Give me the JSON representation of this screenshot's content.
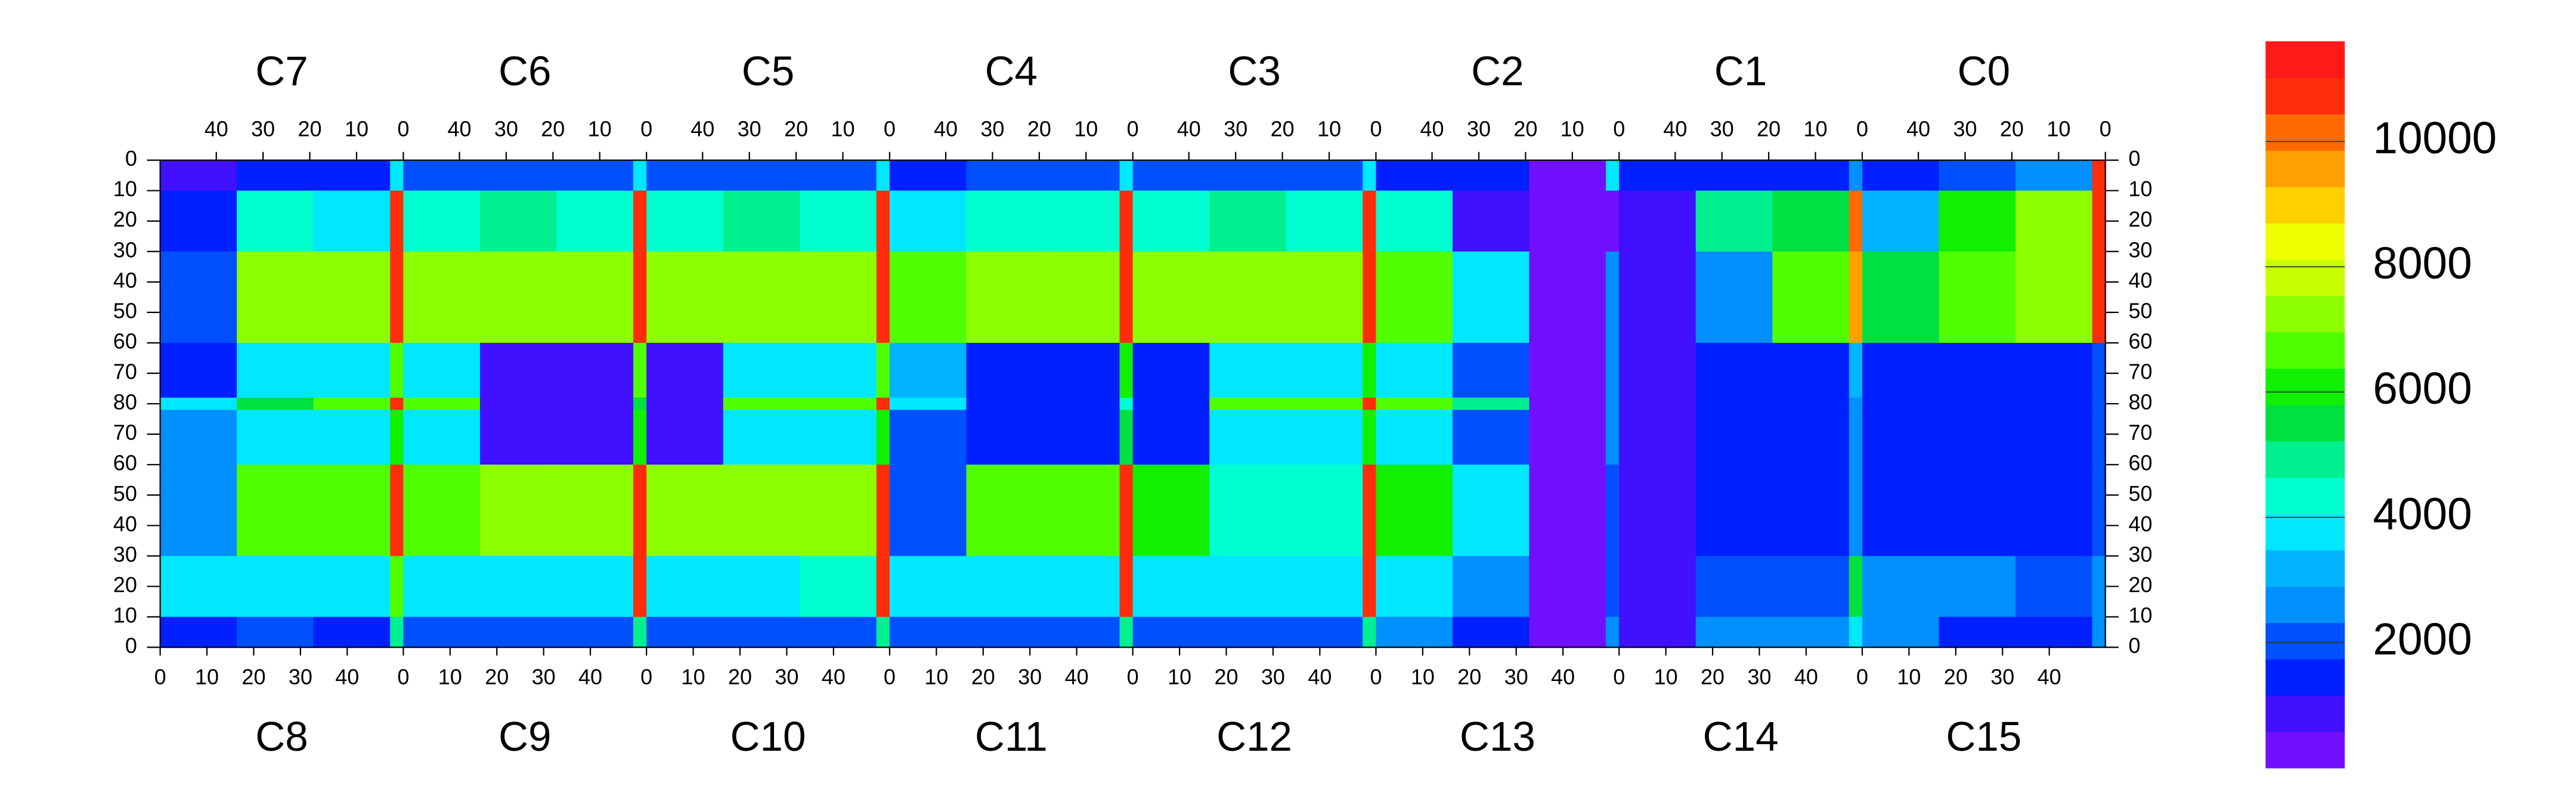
{
  "chart_data": {
    "type": "heatmap",
    "chips_top": [
      "C7",
      "C6",
      "C5",
      "C4",
      "C3",
      "C2",
      "C1",
      "C0"
    ],
    "chips_bottom": [
      "C8",
      "C9",
      "C10",
      "C11",
      "C12",
      "C13",
      "C14",
      "C15"
    ],
    "top_xticks": [
      40,
      30,
      20,
      10,
      0
    ],
    "bottom_xticks": [
      0,
      10,
      20,
      30,
      40
    ],
    "xlim": [
      0,
      52
    ],
    "yticks": [
      0,
      10,
      20,
      30,
      40,
      50,
      60,
      70,
      80,
      70,
      60,
      50,
      40,
      30,
      20,
      10,
      0
    ],
    "ylim": [
      0,
      80
    ],
    "z": [
      [
        800,
        1200,
        1500,
        3500,
        1800,
        2200,
        2000,
        4000,
        1800,
        2000,
        2200,
        4000,
        1500,
        2000,
        2000,
        4000,
        1800,
        2200,
        2000,
        4000,
        1500,
        1200,
        500,
        3500,
        1200,
        1500,
        1500,
        2500,
        1200,
        1800,
        2500,
        10500
      ],
      [
        1500,
        4500,
        4000,
        10500,
        4500,
        5000,
        4500,
        10500,
        4500,
        5000,
        4500,
        10500,
        4000,
        4500,
        4500,
        10500,
        4500,
        5000,
        4500,
        10500,
        4500,
        1000,
        500,
        500,
        1000,
        5000,
        5500,
        10000,
        3000,
        6000,
        7000,
        10500
      ],
      [
        2000,
        7000,
        7000,
        11000,
        7000,
        7500,
        7000,
        11000,
        7000,
        7500,
        7500,
        11000,
        6500,
        7000,
        7000,
        11000,
        7000,
        7000,
        7000,
        11000,
        6500,
        3500,
        500,
        2500,
        1000,
        2500,
        6500,
        9500,
        5500,
        6500,
        7500,
        10500
      ],
      [
        1500,
        3500,
        3500,
        6500,
        3500,
        1000,
        1000,
        6500,
        800,
        3500,
        3500,
        6500,
        3000,
        1500,
        1500,
        6000,
        1500,
        3500,
        3500,
        6000,
        3500,
        2000,
        500,
        2500,
        800,
        1500,
        1500,
        3000,
        1500,
        1500,
        1500,
        2000
      ],
      [
        3500,
        5500,
        6500,
        10500,
        6500,
        1000,
        1000,
        5500,
        900,
        6500,
        6500,
        10500,
        4000,
        1500,
        1500,
        4500,
        1500,
        6500,
        6500,
        10500,
        6500,
        5000,
        500,
        2500,
        800,
        1500,
        1500,
        2500,
        1500,
        1500,
        1500,
        2000
      ],
      [
        2500,
        3500,
        3500,
        6000,
        3500,
        1000,
        1000,
        6000,
        800,
        3500,
        3500,
        6000,
        1800,
        1500,
        1500,
        5500,
        1500,
        3500,
        3500,
        6000,
        3500,
        2000,
        500,
        2500,
        800,
        1500,
        1500,
        2500,
        1500,
        1500,
        1500,
        2000
      ],
      [
        2500,
        6500,
        6500,
        10500,
        6500,
        7000,
        7000,
        11000,
        7000,
        7000,
        7000,
        11000,
        2000,
        6500,
        6500,
        11000,
        6000,
        4500,
        4500,
        10500,
        6000,
        3500,
        500,
        2000,
        800,
        1500,
        1500,
        2500,
        1500,
        1500,
        1500,
        2000
      ],
      [
        3500,
        3500,
        4000,
        6500,
        3500,
        4000,
        4000,
        10500,
        4000,
        4000,
        4500,
        10500,
        3500,
        4000,
        4000,
        10500,
        3500,
        4000,
        4000,
        10500,
        4000,
        2500,
        500,
        2000,
        1000,
        2000,
        2000,
        5500,
        2500,
        2500,
        2000,
        2500
      ],
      [
        1500,
        2000,
        1500,
        5000,
        2000,
        2000,
        2000,
        5000,
        2000,
        2000,
        2000,
        5000,
        2000,
        2000,
        2000,
        5000,
        2000,
        2000,
        2000,
        5000,
        2500,
        1500,
        500,
        2500,
        1000,
        2500,
        2500,
        4000,
        2500,
        1500,
        1500,
        2500
      ]
    ],
    "zlim": [
      0,
      11600
    ],
    "zticks": [
      2000,
      4000,
      6000,
      8000,
      10000
    ],
    "palette": [
      "#7010ff",
      "#4010ff",
      "#0020ff",
      "#0050ff",
      "#0090ff",
      "#00b4ff",
      "#00e8ff",
      "#00ffd0",
      "#00f090",
      "#00e040",
      "#10f000",
      "#50ff00",
      "#8cff00",
      "#c8ff00",
      "#f0ff00",
      "#ffd000",
      "#ffa000",
      "#ff6a00",
      "#ff2d0a",
      "#ff1a1a"
    ]
  }
}
